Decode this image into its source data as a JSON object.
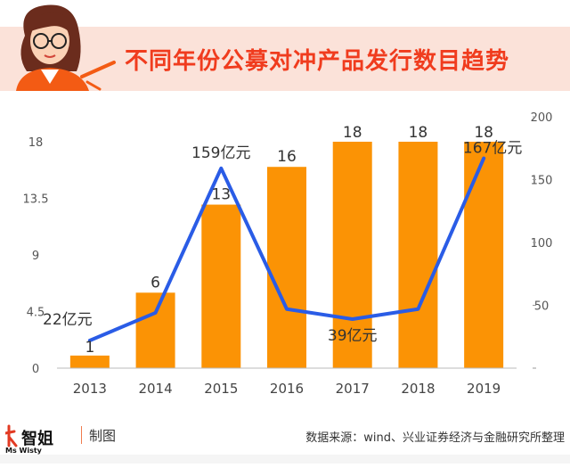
{
  "title": "不同年份公募对冲产品发行数目趋势",
  "footer": {
    "brand_text": "Ms Wisty",
    "brand_cn": "智姐",
    "maker": "制图",
    "source": "数据来源：wind、兴业证券经济与金融研究所整理"
  },
  "colors": {
    "bar": "#fb9305",
    "line": "#2a5ce6",
    "title": "#f03c1e",
    "header_bg": "#fbe2d9"
  },
  "chart_data": {
    "type": "bar",
    "categories": [
      "2013",
      "2014",
      "2015",
      "2016",
      "2017",
      "2018",
      "2019"
    ],
    "series": [
      {
        "type": "bar",
        "axis": "left",
        "values": [
          1,
          6,
          13,
          16,
          18,
          18,
          18
        ],
        "labels": [
          "1",
          "6",
          "13",
          "16",
          "18",
          "18",
          "18"
        ]
      },
      {
        "type": "line",
        "axis": "right",
        "values": [
          22,
          44,
          159,
          47,
          39,
          47,
          167
        ],
        "labels": [
          "22亿元",
          "",
          "159亿元",
          "",
          "39亿元",
          "",
          "167亿元"
        ]
      }
    ],
    "y_left": {
      "min": 0,
      "max": 18,
      "ticks": [
        "0",
        "4.5",
        "9",
        "13.5",
        "18"
      ]
    },
    "y_right": {
      "min": 0,
      "max": 200,
      "ticks": [
        "",
        "50",
        "100",
        "150",
        "200"
      ]
    },
    "grid": false,
    "legend": "none"
  }
}
